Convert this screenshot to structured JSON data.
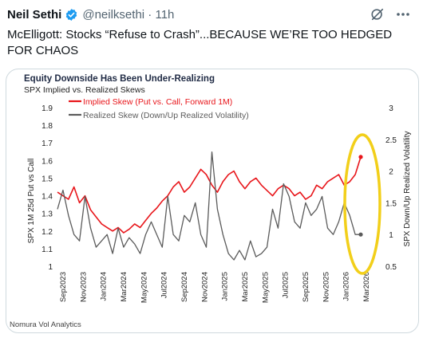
{
  "tweet": {
    "author_name": "Neil Sethi",
    "handle": "@neilksethi",
    "separator": "·",
    "time": "11h",
    "text": "McElligott:  Stocks “Refuse to Crash”...BECAUSE WE’RE TOO HEDGED FOR CHAOS",
    "icons": {
      "verified": "verified-badge-icon",
      "grok": "grok-icon",
      "more": "more-options-icon"
    },
    "colors": {
      "verified": "#1d9bf0",
      "handle": "#536471"
    }
  },
  "chart_data": {
    "type": "line",
    "title": "Equity Downside Has Been Under-Realizing",
    "subtitle": "SPX Implied vs. Realized Skews",
    "ylabel": "SPX 1M 25d Put vs Call",
    "y2label": "SPX Down/Up Realized Volatility",
    "source": "Nomura Vol Analytics",
    "ylim": [
      1,
      1.9
    ],
    "y2lim": [
      0.5,
      3
    ],
    "yticks": [
      "1.9",
      "1.8",
      "1.7",
      "1.6",
      "1.5",
      "1.4",
      "1.3",
      "1.2",
      "1.1",
      "1"
    ],
    "y2ticks": [
      "3",
      "2.5",
      "2",
      "1.5",
      "1",
      "0.5"
    ],
    "xticks": [
      "Sep2023",
      "Nov2023",
      "Jan2024",
      "Mar2024",
      "May2024",
      "Jul2024",
      "Sep2024",
      "Nov2024",
      "Jan2025",
      "Mar2025",
      "May2025",
      "Jul2025",
      "Sep2025",
      "Nov2025",
      "Jan2026",
      "Mar2026"
    ],
    "legend_position": "top-left",
    "annotation": "yellow-ellipse-highlight",
    "colors": {
      "implied": "#e8161b",
      "realized": "#5b5b5b",
      "annotation": "#f2cf1a",
      "title": "#1f2a44"
    },
    "series": [
      {
        "name": "Implied Skew (Put vs. Call, Forward 1M)",
        "axis": "left",
        "values": [
          1.42,
          1.4,
          1.38,
          1.45,
          1.36,
          1.4,
          1.32,
          1.28,
          1.24,
          1.22,
          1.2,
          1.22,
          1.19,
          1.21,
          1.24,
          1.22,
          1.26,
          1.3,
          1.33,
          1.37,
          1.4,
          1.45,
          1.48,
          1.42,
          1.45,
          1.5,
          1.55,
          1.52,
          1.46,
          1.42,
          1.48,
          1.52,
          1.54,
          1.48,
          1.44,
          1.48,
          1.5,
          1.46,
          1.43,
          1.4,
          1.44,
          1.46,
          1.44,
          1.4,
          1.42,
          1.38,
          1.4,
          1.46,
          1.44,
          1.48,
          1.5,
          1.52,
          1.46,
          1.48,
          1.52,
          1.62
        ]
      },
      {
        "name": "Realized Skew (Down/Up Realized Volatility)",
        "axis": "right",
        "values": [
          1.4,
          1.7,
          1.3,
          1.0,
          0.9,
          1.6,
          1.1,
          0.8,
          0.9,
          1.0,
          0.7,
          1.1,
          0.8,
          0.95,
          0.85,
          0.7,
          1.0,
          1.2,
          1.0,
          0.8,
          1.6,
          1.0,
          0.9,
          1.3,
          1.2,
          1.5,
          1.0,
          0.8,
          2.3,
          1.4,
          1.0,
          0.7,
          0.6,
          0.75,
          0.6,
          0.9,
          0.65,
          0.7,
          0.8,
          1.4,
          1.1,
          1.8,
          1.6,
          1.2,
          1.1,
          1.5,
          1.3,
          1.4,
          1.6,
          1.1,
          1.0,
          1.2,
          1.5,
          1.3,
          1.0,
          1.0
        ]
      }
    ]
  }
}
